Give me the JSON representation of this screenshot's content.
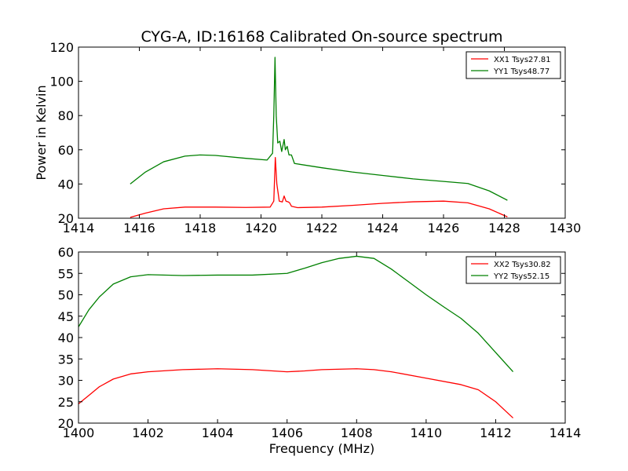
{
  "figure": {
    "title": "CYG-A, ID:16168 Calibrated On-source spectrum"
  },
  "chart_data": [
    {
      "type": "line",
      "title": "",
      "xlabel": "",
      "ylabel": "Power in Kelvin",
      "xlim": [
        1414,
        1430
      ],
      "ylim": [
        20,
        120
      ],
      "xticks": [
        "1414",
        "1416",
        "1418",
        "1420",
        "1422",
        "1424",
        "1426",
        "1428",
        "1430"
      ],
      "yticks": [
        "20",
        "40",
        "60",
        "80",
        "100",
        "120"
      ],
      "grid": false,
      "legend_position": "top-right",
      "series": [
        {
          "name": "XX1 Tsys27.81",
          "color": "#ff0000",
          "x": [
            1415.7,
            1416.2,
            1416.8,
            1417.5,
            1418.5,
            1419.5,
            1420.3,
            1420.42,
            1420.47,
            1420.52,
            1420.6,
            1420.7,
            1420.76,
            1420.82,
            1420.9,
            1420.94,
            1421.0,
            1421.2,
            1422.0,
            1423.0,
            1424.0,
            1425.0,
            1426.0,
            1426.8,
            1427.5,
            1428.1
          ],
          "y": [
            20.5,
            23,
            25.5,
            26.5,
            26.5,
            26.3,
            26.5,
            30,
            55.5,
            40,
            30,
            29.5,
            33,
            30,
            29.5,
            29,
            27,
            26.2,
            26.5,
            27.5,
            28.7,
            29.6,
            30,
            29,
            25.5,
            20.8
          ]
        },
        {
          "name": "YY1 Tsys48.77",
          "color": "#008000",
          "x": [
            1415.7,
            1416.2,
            1416.8,
            1417.5,
            1418.0,
            1418.5,
            1419.5,
            1420.2,
            1420.38,
            1420.42,
            1420.46,
            1420.5,
            1420.55,
            1420.62,
            1420.68,
            1420.76,
            1420.8,
            1420.86,
            1420.92,
            1421.0,
            1421.1,
            1422.0,
            1423.0,
            1424.0,
            1425.0,
            1426.0,
            1426.8,
            1427.5,
            1428.1
          ],
          "y": [
            40,
            47,
            53,
            56.3,
            57,
            56.7,
            55,
            54,
            58,
            80,
            114,
            80,
            64,
            65,
            59,
            66,
            60,
            62,
            57,
            57,
            52,
            49.5,
            47,
            45,
            43,
            41.5,
            40.3,
            36,
            30.5
          ]
        }
      ]
    },
    {
      "type": "line",
      "title": "",
      "xlabel": "Frequency (MHz)",
      "ylabel": "",
      "xlim": [
        1400,
        1414
      ],
      "ylim": [
        20,
        60
      ],
      "xticks": [
        "1400",
        "1402",
        "1404",
        "1406",
        "1408",
        "1410",
        "1412",
        "1414"
      ],
      "yticks": [
        "20",
        "25",
        "30",
        "35",
        "40",
        "45",
        "50",
        "55",
        "60"
      ],
      "grid": false,
      "legend_position": "top-right",
      "series": [
        {
          "name": "XX2 Tsys30.82",
          "color": "#ff0000",
          "x": [
            1400.0,
            1400.3,
            1400.6,
            1401.0,
            1401.5,
            1402.0,
            1403.0,
            1404.0,
            1405.0,
            1406.0,
            1406.5,
            1407.0,
            1408.0,
            1408.5,
            1409.0,
            1410.0,
            1411.0,
            1411.5,
            1412.0,
            1412.5
          ],
          "y": [
            24.5,
            26.5,
            28.5,
            30.3,
            31.5,
            32.0,
            32.5,
            32.7,
            32.5,
            32.0,
            32.2,
            32.5,
            32.7,
            32.5,
            32.0,
            30.5,
            29.0,
            27.8,
            25.0,
            21.2
          ]
        },
        {
          "name": "YY2 Tsys52.15",
          "color": "#008000",
          "x": [
            1400.0,
            1400.3,
            1400.6,
            1401.0,
            1401.5,
            1402.0,
            1403.0,
            1404.0,
            1405.0,
            1406.0,
            1406.5,
            1407.0,
            1407.5,
            1408.0,
            1408.5,
            1409.0,
            1409.5,
            1410.0,
            1410.5,
            1411.0,
            1411.5,
            1412.0,
            1412.5
          ],
          "y": [
            42.5,
            46.5,
            49.5,
            52.5,
            54.2,
            54.7,
            54.5,
            54.6,
            54.6,
            55.0,
            56.2,
            57.5,
            58.5,
            59.0,
            58.5,
            56.0,
            53.0,
            50.0,
            47.2,
            44.5,
            41.0,
            36.5,
            32.0
          ]
        }
      ]
    }
  ]
}
